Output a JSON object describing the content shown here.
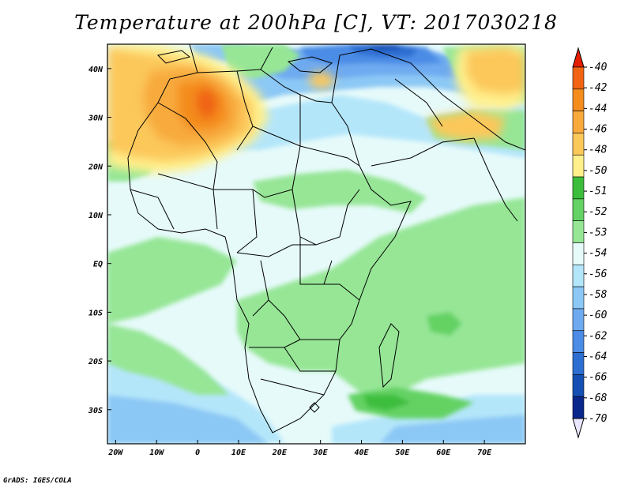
{
  "title": "Temperature at 200hPa [C], VT: 2017030218",
  "credit": "GrADS: IGES/COLA",
  "map": {
    "lat_range": [
      -37,
      45
    ],
    "lon_range": [
      -22,
      80
    ],
    "lat_ticks": [
      {
        "value": 40,
        "label": "40N"
      },
      {
        "value": 30,
        "label": "30N"
      },
      {
        "value": 20,
        "label": "20N"
      },
      {
        "value": 10,
        "label": "10N"
      },
      {
        "value": 0,
        "label": "EQ"
      },
      {
        "value": -10,
        "label": "10S"
      },
      {
        "value": -20,
        "label": "20S"
      },
      {
        "value": -30,
        "label": "30S"
      }
    ],
    "lon_ticks": [
      {
        "value": -20,
        "label": "20W"
      },
      {
        "value": -10,
        "label": "10W"
      },
      {
        "value": 0,
        "label": "0"
      },
      {
        "value": 10,
        "label": "10E"
      },
      {
        "value": 20,
        "label": "20E"
      },
      {
        "value": 30,
        "label": "30E"
      },
      {
        "value": 40,
        "label": "40E"
      },
      {
        "value": 50,
        "label": "50E"
      },
      {
        "value": 60,
        "label": "60E"
      },
      {
        "value": 70,
        "label": "70E"
      }
    ],
    "background_level_color": "#e6fafa"
  },
  "colorbar": {
    "levels": [
      {
        "label": "-40",
        "color": "#e63c00"
      },
      {
        "label": "-42",
        "color": "#f06414"
      },
      {
        "label": "-44",
        "color": "#f48c1e"
      },
      {
        "label": "-46",
        "color": "#f8aa3c"
      },
      {
        "label": "-48",
        "color": "#fcc85a"
      },
      {
        "label": "-50",
        "color": "#fff08c"
      },
      {
        "label": "-51",
        "color": "#3cbe3c"
      },
      {
        "label": "-52",
        "color": "#64d264"
      },
      {
        "label": "-53",
        "color": "#96e696"
      },
      {
        "label": "-54",
        "color": "#e6fafa"
      },
      {
        "label": "-56",
        "color": "#b4e6fa"
      },
      {
        "label": "-58",
        "color": "#8cc8f5"
      },
      {
        "label": "-60",
        "color": "#6eaaf0"
      },
      {
        "label": "-62",
        "color": "#4b8ce6"
      },
      {
        "label": "-64",
        "color": "#2d6ed2"
      },
      {
        "label": "-66",
        "color": "#1450b4"
      },
      {
        "label": "-68",
        "color": "#0a288c"
      },
      {
        "label": "-70",
        "color": "#ebe6ff"
      }
    ],
    "top_arrow_color": "#e61e00",
    "bottom_arrow_color": "#ebe6ff"
  }
}
